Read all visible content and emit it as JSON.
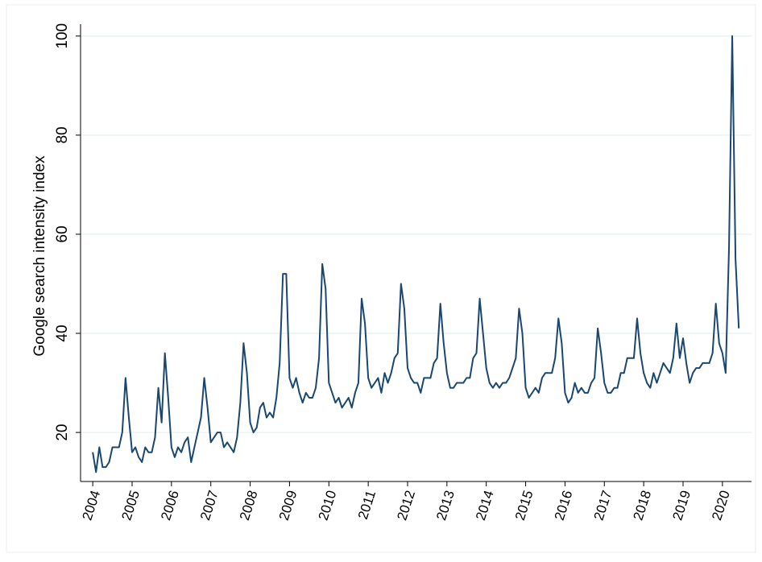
{
  "chart_data": {
    "type": "line",
    "y_label": "Google search intensity index",
    "x": [
      2004,
      2004.083,
      2004.167,
      2004.25,
      2004.333,
      2004.417,
      2004.5,
      2004.583,
      2004.667,
      2004.75,
      2004.833,
      2004.917,
      2005,
      2005.083,
      2005.167,
      2005.25,
      2005.333,
      2005.417,
      2005.5,
      2005.583,
      2005.667,
      2005.75,
      2005.833,
      2005.917,
      2006,
      2006.083,
      2006.167,
      2006.25,
      2006.333,
      2006.417,
      2006.5,
      2006.583,
      2006.667,
      2006.75,
      2006.833,
      2006.917,
      2007,
      2007.083,
      2007.167,
      2007.25,
      2007.333,
      2007.417,
      2007.5,
      2007.583,
      2007.667,
      2007.75,
      2007.833,
      2007.917,
      2008,
      2008.083,
      2008.167,
      2008.25,
      2008.333,
      2008.417,
      2008.5,
      2008.583,
      2008.667,
      2008.75,
      2008.833,
      2008.917,
      2009,
      2009.083,
      2009.167,
      2009.25,
      2009.333,
      2009.417,
      2009.5,
      2009.583,
      2009.667,
      2009.75,
      2009.833,
      2009.917,
      2010,
      2010.083,
      2010.167,
      2010.25,
      2010.333,
      2010.417,
      2010.5,
      2010.583,
      2010.667,
      2010.75,
      2010.833,
      2010.917,
      2011,
      2011.083,
      2011.167,
      2011.25,
      2011.333,
      2011.417,
      2011.5,
      2011.583,
      2011.667,
      2011.75,
      2011.833,
      2011.917,
      2012,
      2012.083,
      2012.167,
      2012.25,
      2012.333,
      2012.417,
      2012.5,
      2012.583,
      2012.667,
      2012.75,
      2012.833,
      2012.917,
      2013,
      2013.083,
      2013.167,
      2013.25,
      2013.333,
      2013.417,
      2013.5,
      2013.583,
      2013.667,
      2013.75,
      2013.833,
      2013.917,
      2014,
      2014.083,
      2014.167,
      2014.25,
      2014.333,
      2014.417,
      2014.5,
      2014.583,
      2014.667,
      2014.75,
      2014.833,
      2014.917,
      2015,
      2015.083,
      2015.167,
      2015.25,
      2015.333,
      2015.417,
      2015.5,
      2015.583,
      2015.667,
      2015.75,
      2015.833,
      2015.917,
      2016,
      2016.083,
      2016.167,
      2016.25,
      2016.333,
      2016.417,
      2016.5,
      2016.583,
      2016.667,
      2016.75,
      2016.833,
      2016.917,
      2017,
      2017.083,
      2017.167,
      2017.25,
      2017.333,
      2017.417,
      2017.5,
      2017.583,
      2017.667,
      2017.75,
      2017.833,
      2017.917,
      2018,
      2018.083,
      2018.167,
      2018.25,
      2018.333,
      2018.417,
      2018.5,
      2018.583,
      2018.667,
      2018.75,
      2018.833,
      2018.917,
      2019,
      2019.083,
      2019.167,
      2019.25,
      2019.333,
      2019.417,
      2019.5,
      2019.583,
      2019.667,
      2019.75,
      2019.833,
      2019.917,
      2020,
      2020.083,
      2020.167,
      2020.25,
      2020.333,
      2020.417
    ],
    "series": [
      {
        "color": "#1a476f",
        "values": [
          16,
          12,
          17,
          13,
          13,
          14,
          17,
          17,
          17,
          20,
          31,
          23,
          16,
          17,
          15,
          14,
          17,
          16,
          16,
          19,
          29,
          22,
          36,
          27,
          17,
          15,
          17,
          16,
          18,
          19,
          14,
          17,
          20,
          23,
          31,
          25,
          18,
          19,
          20,
          20,
          17,
          18,
          17,
          16,
          19,
          26,
          38,
          32,
          22,
          20,
          21,
          25,
          26,
          23,
          24,
          23,
          27,
          34,
          52,
          52,
          31,
          29,
          31,
          28,
          26,
          28,
          27,
          27,
          29,
          35,
          54,
          49,
          30,
          28,
          26,
          27,
          25,
          26,
          27,
          25,
          28,
          30,
          47,
          42,
          31,
          29,
          30,
          31,
          28,
          32,
          30,
          32,
          35,
          36,
          50,
          45,
          33,
          31,
          30,
          30,
          28,
          31,
          31,
          31,
          34,
          35,
          46,
          38,
          32,
          29,
          29,
          30,
          30,
          30,
          31,
          31,
          35,
          36,
          47,
          40,
          33,
          30,
          29,
          30,
          29,
          30,
          30,
          31,
          33,
          35,
          45,
          40,
          29,
          27,
          28,
          29,
          28,
          31,
          32,
          32,
          32,
          35,
          43,
          38,
          28,
          26,
          27,
          30,
          28,
          29,
          28,
          28,
          30,
          31,
          41,
          36,
          30,
          28,
          28,
          29,
          29,
          32,
          32,
          35,
          35,
          35,
          43,
          36,
          32,
          30,
          29,
          32,
          30,
          32,
          34,
          33,
          32,
          35,
          42,
          35,
          39,
          34,
          30,
          32,
          33,
          33,
          34,
          34,
          34,
          36,
          46,
          38,
          36,
          32,
          57,
          100,
          55,
          41
        ]
      }
    ],
    "xlim": [
      2003.69,
      2020.74
    ],
    "xticks": [
      2004,
      2005,
      2006,
      2007,
      2008,
      2009,
      2010,
      2011,
      2012,
      2013,
      2014,
      2015,
      2016,
      2017,
      2018,
      2019,
      2020
    ],
    "ylim": [
      10.1,
      102.4
    ],
    "yticks": [
      20,
      40,
      60,
      80,
      100
    ],
    "grid": true
  }
}
